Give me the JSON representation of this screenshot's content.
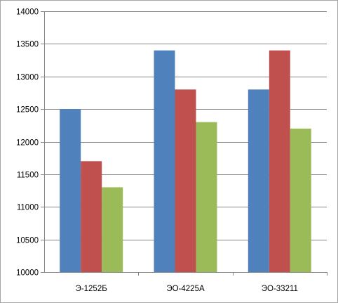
{
  "chart_data": {
    "type": "bar",
    "title": "",
    "xlabel": "",
    "ylabel": "",
    "categories": [
      "Э-1252Б",
      "ЭО-4225А",
      "ЭО-33211"
    ],
    "series": [
      {
        "values": [
          12500,
          13400,
          12800
        ],
        "color": "#4f81bd"
      },
      {
        "values": [
          11700,
          12800,
          13400
        ],
        "color": "#c0504d"
      },
      {
        "values": [
          11300,
          12300,
          12200
        ],
        "color": "#9bbb59"
      }
    ],
    "ylim": [
      10000,
      14000
    ],
    "yticks": [
      10000,
      10500,
      11000,
      11500,
      12000,
      12500,
      13000,
      13500,
      14000
    ],
    "grid": true,
    "legend": "none"
  }
}
